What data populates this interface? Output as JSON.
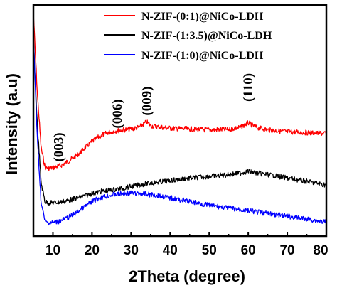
{
  "chart_data": {
    "type": "line",
    "title": "",
    "xlabel": "2Theta (degree)",
    "ylabel": "Intensity (a.u)",
    "xlim": [
      5,
      80
    ],
    "xticks": [
      "10",
      "20",
      "30",
      "40",
      "50",
      "60",
      "70",
      "80"
    ],
    "yticks_shown": false,
    "legend_position": "top-right",
    "series": [
      {
        "name": "N-ZIF-(0:1)@NiCo-LDH",
        "color": "#ff0000",
        "x": [
          5,
          6,
          7,
          8,
          9,
          10,
          12,
          14,
          16,
          18,
          20,
          22,
          24,
          26,
          28,
          30,
          32,
          33,
          34,
          35,
          36,
          38,
          40,
          45,
          50,
          55,
          58,
          60,
          62,
          65,
          70,
          75,
          80
        ],
        "y": [
          1.0,
          0.55,
          0.24,
          0.135,
          0.13,
          0.133,
          0.145,
          0.17,
          0.2,
          0.24,
          0.28,
          0.31,
          0.33,
          0.34,
          0.345,
          0.35,
          0.36,
          0.375,
          0.39,
          0.37,
          0.365,
          0.36,
          0.355,
          0.35,
          0.345,
          0.348,
          0.36,
          0.385,
          0.36,
          0.345,
          0.335,
          0.33,
          0.325
        ]
      },
      {
        "name": "N-ZIF-(1:3.5)@NiCo-LDH",
        "color": "#000000",
        "x": [
          5,
          6,
          7,
          8,
          9,
          10,
          12,
          14,
          16,
          18,
          20,
          22,
          25,
          28,
          30,
          32,
          35,
          40,
          45,
          50,
          55,
          58,
          60,
          62,
          65,
          70,
          75,
          80
        ],
        "y": [
          1.0,
          0.5,
          0.16,
          0.05,
          0.045,
          0.046,
          0.05,
          0.06,
          0.072,
          0.085,
          0.1,
          0.11,
          0.12,
          0.13,
          0.14,
          0.15,
          0.16,
          0.175,
          0.19,
          0.2,
          0.21,
          0.22,
          0.23,
          0.22,
          0.21,
          0.19,
          0.17,
          0.15
        ]
      },
      {
        "name": "N-ZIF-(1:0)@NiCo-LDH",
        "color": "#0000ff",
        "x": [
          5,
          6,
          7,
          8,
          9,
          10,
          12,
          14,
          16,
          18,
          20,
          22,
          24,
          26,
          28,
          30,
          32,
          34,
          36,
          40,
          45,
          50,
          55,
          60,
          65,
          70,
          75,
          80
        ],
        "y": [
          1.0,
          0.45,
          0.1,
          0.0,
          -0.005,
          -0.005,
          0.005,
          0.025,
          0.05,
          0.08,
          0.11,
          0.13,
          0.14,
          0.15,
          0.153,
          0.155,
          0.153,
          0.15,
          0.145,
          0.13,
          0.11,
          0.09,
          0.075,
          0.06,
          0.045,
          0.03,
          0.015,
          0.0
        ]
      }
    ],
    "annotations": [
      {
        "text": "(003)",
        "x": 11.5
      },
      {
        "text": "(006)",
        "x": 26.5
      },
      {
        "text": "(009)",
        "x": 34
      },
      {
        "text": "(110)",
        "x": 60
      }
    ]
  }
}
